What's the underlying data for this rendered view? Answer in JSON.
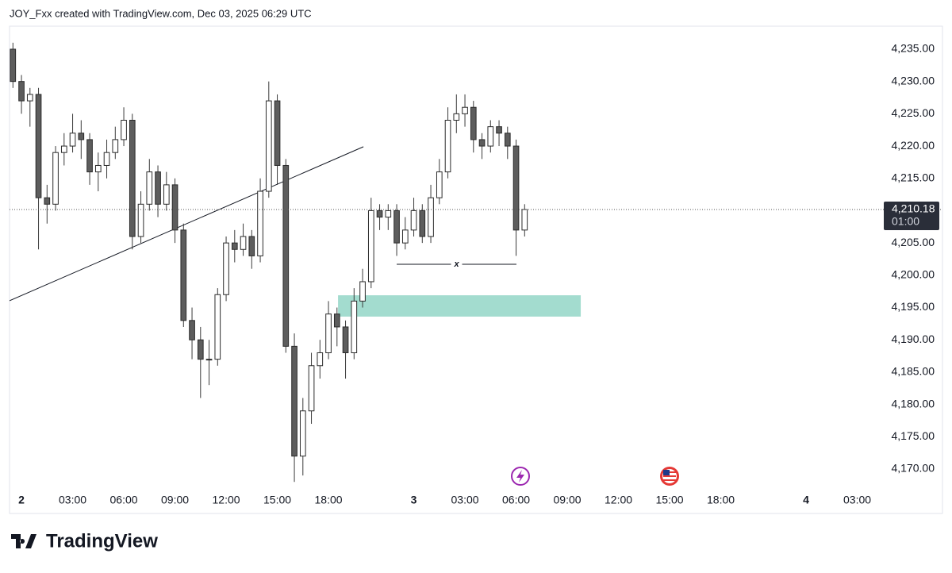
{
  "header": "JOY_Fxx created with TradingView.com, Dec 03, 2025 06:29 UTC",
  "footer": "TradingView",
  "chart_data": {
    "type": "candlestick",
    "up_color": "#ffffff",
    "down_color": "#5d5d5d",
    "wick_color": "#3a3a3a",
    "x": [
      -0.5,
      0,
      0.5,
      1,
      1.5,
      2,
      2.5,
      3,
      3.5,
      4,
      4.5,
      5,
      5.5,
      6,
      6.5,
      7,
      7.5,
      8,
      8.5,
      9,
      9.5,
      10,
      10.5,
      11,
      11.5,
      12,
      12.5,
      13,
      13.5,
      14,
      14.5,
      15,
      15.5,
      16,
      16.5,
      17,
      17.5,
      18,
      18.5,
      19,
      19.5,
      20,
      20.5,
      21,
      21.5,
      22,
      22.5,
      23,
      23.5,
      24,
      24.5,
      25,
      25.5,
      26,
      26.5,
      27,
      27.5,
      28,
      28.5,
      29,
      29.5
    ],
    "open": [
      4235,
      4230,
      4227,
      4228,
      4212,
      4211,
      4219,
      4220,
      4222,
      4221,
      4216,
      4217,
      4219,
      4221,
      4224,
      4206,
      4211,
      4216,
      4211,
      4214,
      4207,
      4193,
      4190,
      4187,
      4187,
      4197,
      4205,
      4204,
      4206,
      4203,
      4213,
      4227,
      4217,
      4189,
      4172,
      4179,
      4186,
      4188,
      4194,
      4192,
      4188,
      4196,
      4199,
      4210,
      4209,
      4210,
      4205,
      4207,
      4210,
      4206,
      4212,
      4216,
      4224,
      4225,
      4226,
      4221,
      4220,
      4223,
      4222,
      4220,
      4207
    ],
    "high": [
      4236,
      4231,
      4229,
      4229,
      4214,
      4220,
      4222,
      4225,
      4224,
      4222,
      4219,
      4221,
      4223,
      4226,
      4225,
      4213,
      4218,
      4217,
      4216,
      4215,
      4208,
      4195,
      4192,
      4190,
      4198,
      4206,
      4207,
      4208,
      4207,
      4215,
      4230,
      4228,
      4218,
      4191,
      4181,
      4188,
      4190,
      4196,
      4195,
      4193,
      4198,
      4201,
      4212,
      4211,
      4211,
      4211,
      4209,
      4212,
      4211,
      4214,
      4218,
      4226,
      4228,
      4228,
      4227,
      4222,
      4224,
      4224,
      4223,
      4221,
      4211
    ],
    "low": [
      4229,
      4225,
      4223,
      4204,
      4208,
      4210,
      4217,
      4219,
      4218,
      4214,
      4213,
      4215,
      4218,
      4220,
      4204,
      4205,
      4210,
      4209,
      4210,
      4205,
      4192,
      4187,
      4181,
      4183,
      4186,
      4196,
      4202,
      4203,
      4201,
      4202,
      4212,
      4214,
      4188,
      4168,
      4169,
      4177,
      4184,
      4187,
      4189,
      4184,
      4187,
      4195,
      4198,
      4207,
      4207,
      4203,
      4204,
      4206,
      4205,
      4205,
      4211,
      4215,
      4222,
      4223,
      4219,
      4218,
      4219,
      4220,
      4218,
      4203,
      4206
    ],
    "close": [
      4230,
      4227,
      4228,
      4212,
      4211,
      4219,
      4220,
      4222,
      4221,
      4216,
      4217,
      4219,
      4221,
      4224,
      4206,
      4211,
      4216,
      4211,
      4214,
      4207,
      4193,
      4190,
      4187,
      4187,
      4197,
      4205,
      4204,
      4206,
      4203,
      4213,
      4227,
      4217,
      4189,
      4172,
      4179,
      4186,
      4188,
      4194,
      4192,
      4188,
      4196,
      4199,
      4210,
      4209,
      4210,
      4205,
      4207,
      4210,
      4206,
      4212,
      4216,
      4224,
      4225,
      4226,
      4221,
      4220,
      4223,
      4222,
      4220,
      4207,
      4210.18
    ],
    "xlim": [
      -0.7,
      50.37
    ],
    "ylim": [
      4167.05,
      4238.56
    ],
    "xticks": [
      {
        "value": 0,
        "label": "2"
      },
      {
        "value": 3,
        "label": "03:00"
      },
      {
        "value": 6,
        "label": "06:00"
      },
      {
        "value": 9,
        "label": "09:00"
      },
      {
        "value": 12,
        "label": "12:00"
      },
      {
        "value": 15,
        "label": "15:00"
      },
      {
        "value": 18,
        "label": "18:00"
      },
      {
        "value": 23,
        "label": "3"
      },
      {
        "value": 26,
        "label": "03:00"
      },
      {
        "value": 29,
        "label": "06:00"
      },
      {
        "value": 32,
        "label": "09:00"
      },
      {
        "value": 35,
        "label": "12:00"
      },
      {
        "value": 38,
        "label": "15:00"
      },
      {
        "value": 41,
        "label": "18:00"
      },
      {
        "value": 46,
        "label": "4"
      },
      {
        "value": 49,
        "label": "03:00"
      }
    ],
    "yticks": [
      {
        "value": 4170,
        "label": "4,170.00"
      },
      {
        "value": 4175,
        "label": "4,175.00"
      },
      {
        "value": 4180,
        "label": "4,180.00"
      },
      {
        "value": 4185,
        "label": "4,185.00"
      },
      {
        "value": 4190,
        "label": "4,190.00"
      },
      {
        "value": 4195,
        "label": "4,195.00"
      },
      {
        "value": 4200,
        "label": "4,200.00"
      },
      {
        "value": 4205,
        "label": "4,205.00"
      },
      {
        "value": 4210,
        "label": "4,210.00"
      },
      {
        "value": 4215,
        "label": "4,215.00"
      },
      {
        "value": 4220,
        "label": "4,220.00"
      },
      {
        "value": 4225,
        "label": "4,225.00"
      },
      {
        "value": 4230,
        "label": "4,230.00"
      },
      {
        "value": 4235,
        "label": "4,235.00"
      }
    ],
    "last_price": {
      "value": 4210.18,
      "label": "4,210.18"
    },
    "countdown": "01:00",
    "trendline": {
      "x": [
        -0.7,
        20.05
      ],
      "y": [
        4196.05,
        4219.9
      ]
    },
    "zone": {
      "x": [
        18.56,
        32.79
      ],
      "y": [
        4193.6,
        4196.9
      ],
      "color": "#a3dccf"
    },
    "marker_line": {
      "x": [
        22.0,
        29.02
      ],
      "y": 4201.7,
      "label": "x"
    }
  }
}
